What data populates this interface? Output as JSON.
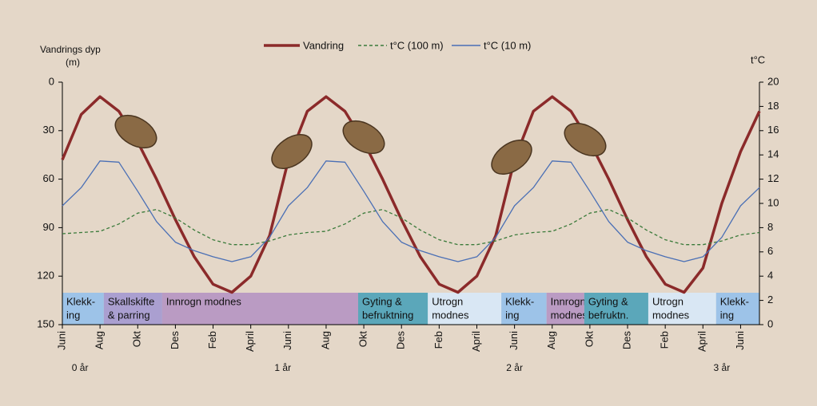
{
  "chart_data": {
    "type": "line",
    "y_title": [
      "Vandrings dyp",
      "(m)"
    ],
    "y2_title": "t°C",
    "x": [
      0,
      1,
      2,
      3,
      4,
      5,
      6,
      7,
      8,
      9,
      10,
      11,
      12,
      13,
      14,
      15,
      16,
      17,
      18,
      19,
      20,
      21,
      22,
      23,
      24,
      25,
      26,
      27,
      28,
      29,
      30,
      31,
      32,
      33,
      34,
      35,
      36,
      37
    ],
    "xlim": [
      0,
      37
    ],
    "xticks": [
      {
        "value": 0,
        "label": "Juni"
      },
      {
        "value": 2,
        "label": "Aug"
      },
      {
        "value": 4,
        "label": "Okt"
      },
      {
        "value": 6,
        "label": "Des"
      },
      {
        "value": 8,
        "label": "Feb"
      },
      {
        "value": 10,
        "label": "April"
      },
      {
        "value": 12,
        "label": "Juni"
      },
      {
        "value": 14,
        "label": "Aug"
      },
      {
        "value": 16,
        "label": "Okt"
      },
      {
        "value": 18,
        "label": "Des"
      },
      {
        "value": 20,
        "label": "Feb"
      },
      {
        "value": 22,
        "label": "April"
      },
      {
        "value": 24,
        "label": "Juni"
      },
      {
        "value": 26,
        "label": "Aug"
      },
      {
        "value": 28,
        "label": "Okt"
      },
      {
        "value": 30,
        "label": "Des"
      },
      {
        "value": 32,
        "label": "Feb"
      },
      {
        "value": 34,
        "label": "April"
      },
      {
        "value": 36,
        "label": "Juni"
      }
    ],
    "year_ticks": [
      {
        "value": 0.5,
        "label": "0 år"
      },
      {
        "value": 11.7,
        "label": "1 år"
      },
      {
        "value": 24,
        "label": "2 år"
      },
      {
        "value": 35,
        "label": "3 år"
      }
    ],
    "ylim": [
      150,
      0
    ],
    "yticks": [
      0,
      30,
      60,
      90,
      120,
      150
    ],
    "y2lim": [
      0,
      20
    ],
    "y2ticks": [
      0,
      2,
      4,
      6,
      8,
      10,
      12,
      14,
      16,
      18,
      20
    ],
    "series": [
      {
        "name": "Vandring",
        "color": "#8b2a2a",
        "style": "solid",
        "values": [
          48,
          20,
          9,
          18,
          37,
          60,
          85,
          108,
          125,
          130,
          120,
          95,
          48,
          18,
          9,
          18,
          37,
          60,
          85,
          108,
          125,
          130,
          120,
          95,
          48,
          18,
          9,
          18,
          37,
          60,
          85,
          108,
          125,
          130,
          115,
          75,
          43,
          18
        ]
      },
      {
        "name": "t°C (100 m)",
        "color": "#3a7a3a",
        "style": "dashed",
        "axis": "y2",
        "values": [
          7.5,
          7.6,
          7.7,
          8.3,
          9.2,
          9.5,
          8.8,
          7.8,
          7.0,
          6.6,
          6.6,
          6.9,
          7.4,
          7.6,
          7.7,
          8.3,
          9.2,
          9.5,
          8.8,
          7.8,
          7.0,
          6.6,
          6.6,
          6.9,
          7.4,
          7.6,
          7.7,
          8.3,
          9.2,
          9.5,
          8.8,
          7.8,
          7.0,
          6.6,
          6.6,
          6.9,
          7.4,
          7.6
        ]
      },
      {
        "name": "t°C (10 m)",
        "color": "#4a6fb5",
        "style": "solid",
        "axis": "y2",
        "values": [
          9.8,
          11.3,
          13.5,
          13.4,
          11.0,
          8.5,
          6.8,
          6.1,
          5.6,
          5.2,
          5.6,
          7.2,
          9.8,
          11.3,
          13.5,
          13.4,
          11.0,
          8.5,
          6.8,
          6.1,
          5.6,
          5.2,
          5.6,
          7.2,
          9.8,
          11.3,
          13.5,
          13.4,
          11.0,
          8.5,
          6.8,
          6.1,
          5.6,
          5.2,
          5.6,
          7.2,
          9.8,
          11.3
        ]
      }
    ],
    "phases": [
      {
        "label": [
          "Klekk-",
          "ing"
        ],
        "start": 0,
        "end": 2.2,
        "color": "#9dc3e8"
      },
      {
        "label": [
          "Skallskifte",
          "& parring"
        ],
        "start": 2.2,
        "end": 5.3,
        "color": "#aa9fd0"
      },
      {
        "label": [
          "Innrogn modnes"
        ],
        "start": 5.3,
        "end": 15.7,
        "color": "#ba9bc3"
      },
      {
        "label": [
          "Gyting &",
          "befruktning"
        ],
        "start": 15.7,
        "end": 19.4,
        "color": "#5ba7ba"
      },
      {
        "label": [
          "Utrogn",
          "modnes"
        ],
        "start": 19.4,
        "end": 23.3,
        "color": "#d9e7f4"
      },
      {
        "label": [
          "Klekk-",
          "ing"
        ],
        "start": 23.3,
        "end": 25.7,
        "color": "#9dc3e8"
      },
      {
        "label": [
          "Innrogn",
          "modnes"
        ],
        "start": 25.7,
        "end": 27.7,
        "color": "#ba9bc3"
      },
      {
        "label": [
          "Gyting &",
          "befruktn."
        ],
        "start": 27.7,
        "end": 31.1,
        "color": "#5ba7ba"
      },
      {
        "label": [
          "Utrogn",
          "modnes"
        ],
        "start": 31.1,
        "end": 34.7,
        "color": "#d9e7f4"
      },
      {
        "label": [
          "Klekk-",
          "ing"
        ],
        "start": 34.7,
        "end": 37,
        "color": "#9dc3e8"
      }
    ]
  }
}
